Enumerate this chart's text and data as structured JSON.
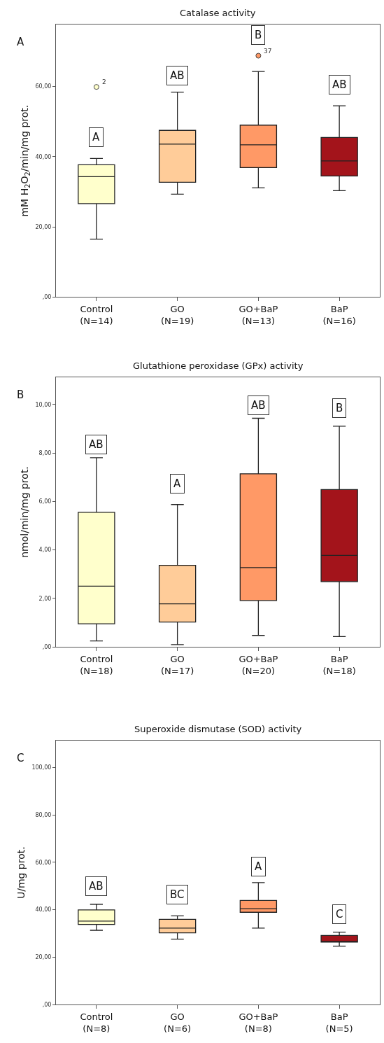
{
  "chart_data": [
    {
      "type": "box",
      "title": "Catalase activity",
      "ylabel": "mM H$_{2}$O$_{2}$/min/mg prot.",
      "categories": [
        "Control\n(N=14)",
        "GO\n(N=19)",
        "GO+BaP\n(N=13)",
        "BaP\n(N=16)"
      ],
      "colors": [
        "#ffffcc",
        "#ffcc99",
        "#ff9966",
        "#a3141b"
      ],
      "boxes": [
        {
          "low": 16.5,
          "q1": 26.6,
          "median": 34.3,
          "q3": 37.7,
          "high": 39.5,
          "outliers": [
            59.9
          ]
        },
        {
          "low": 29.3,
          "q1": 32.7,
          "median": 43.6,
          "q3": 47.5,
          "high": 58.4
        },
        {
          "low": 31.1,
          "q1": 36.9,
          "median": 43.4,
          "q3": 49.0,
          "high": 64.3,
          "outliers": [
            68.8
          ]
        },
        {
          "low": 30.3,
          "q1": 34.5,
          "median": 38.8,
          "q3": 45.5,
          "high": 54.5
        }
      ],
      "ylim": [
        0,
        77.7
      ],
      "yticks": [
        {
          "value": 0,
          "label": ",00"
        },
        {
          "value": 20,
          "label": "20,00"
        },
        {
          "value": 40,
          "label": "40,00"
        },
        {
          "value": 60,
          "label": "60,00"
        }
      ],
      "annotations": [
        "A",
        {
          "text": "A",
          "x": "Control\n(N=14)",
          "y": 45.6
        },
        {
          "text": "AB",
          "x": "GO\n(N=19)",
          "y": 63.2
        },
        {
          "text": "B",
          "x": "GO+BaP\n(N=13)",
          "y": 74.8
        },
        {
          "text": "AB",
          "x": "BaP\n(N=16)",
          "y": 60.5
        },
        "2",
        "37"
      ]
    },
    {
      "type": "box",
      "title": "Glutathione peroxidase (GPx) activity",
      "ylabel": "nmol/min/mg prot.",
      "categories": [
        "Control\n(N=18)",
        "GO\n(N=17)",
        "GO+BaP\n(N=20)",
        "BaP\n(N=18)"
      ],
      "colors": [
        "#ffffcc",
        "#ffcc99",
        "#ff9966",
        "#a3141b"
      ],
      "boxes": [
        {
          "low": 0.24,
          "q1": 0.95,
          "median": 2.5,
          "q3": 5.55,
          "high": 7.8
        },
        {
          "low": 0.09,
          "q1": 1.02,
          "median": 1.77,
          "q3": 3.36,
          "high": 5.87
        },
        {
          "low": 0.47,
          "q1": 1.91,
          "median": 3.27,
          "q3": 7.14,
          "high": 9.43
        },
        {
          "low": 0.42,
          "q1": 2.69,
          "median": 3.77,
          "q3": 6.49,
          "high": 9.1
        }
      ],
      "ylim": [
        0,
        11.12
      ],
      "yticks": [
        {
          "value": 0,
          "label": ",00"
        },
        {
          "value": 2,
          "label": "2,00"
        },
        {
          "value": 4,
          "label": "4,00"
        },
        {
          "value": 6,
          "label": "6,00"
        },
        {
          "value": 8,
          "label": "8,00"
        },
        {
          "value": 10,
          "label": "10,00"
        }
      ],
      "annotations": [
        "B",
        {
          "text": "AB",
          "x": "Control\n(N=18)",
          "y": 8.35
        },
        {
          "text": "A",
          "x": "GO\n(N=17)",
          "y": 6.72
        },
        {
          "text": "AB",
          "x": "GO+BaP\n(N=20)",
          "y": 9.96
        },
        {
          "text": "B",
          "x": "BaP\n(N=18)",
          "y": 9.84
        }
      ]
    },
    {
      "type": "box",
      "title": "Superoxide dismutase (SOD) activity",
      "ylabel": "U/mg prot.",
      "categories": [
        "Control\n(N=8)",
        "GO\n(N=6)",
        "GO+BaP\n(N=8)",
        "BaP\n(N=5)"
      ],
      "colors": [
        "#ffffcc",
        "#ffcc99",
        "#ff9966",
        "#a3141b"
      ],
      "boxes": [
        {
          "low": 31.3,
          "q1": 33.8,
          "median": 35.2,
          "q3": 39.9,
          "high": 42.3
        },
        {
          "low": 27.6,
          "q1": 30.2,
          "median": 32.2,
          "q3": 35.9,
          "high": 37.4
        },
        {
          "low": 32.2,
          "q1": 38.9,
          "median": 40.4,
          "q3": 43.9,
          "high": 51.4
        },
        {
          "low": 24.6,
          "q1": 26.3,
          "median": 26.5,
          "q3": 29.1,
          "high": 30.5
        }
      ],
      "ylim": [
        0,
        111.2
      ],
      "yticks": [
        {
          "value": 0,
          "label": ",00"
        },
        {
          "value": 20,
          "label": "20,00"
        },
        {
          "value": 40,
          "label": "40,00"
        },
        {
          "value": 60,
          "label": "60,00"
        },
        {
          "value": 80,
          "label": "80,00"
        },
        {
          "value": 100,
          "label": "100,00"
        }
      ],
      "annotations": [
        "C",
        {
          "text": "AB",
          "x": "Control\n(N=8)",
          "y": 49.8
        },
        {
          "text": "BC",
          "x": "GO\n(N=6)",
          "y": 46.3
        },
        {
          "text": "A",
          "x": "GO+BaP\n(N=8)",
          "y": 58.2
        },
        {
          "text": "C",
          "x": "BaP\n(N=5)",
          "y": 38.1
        }
      ]
    }
  ]
}
